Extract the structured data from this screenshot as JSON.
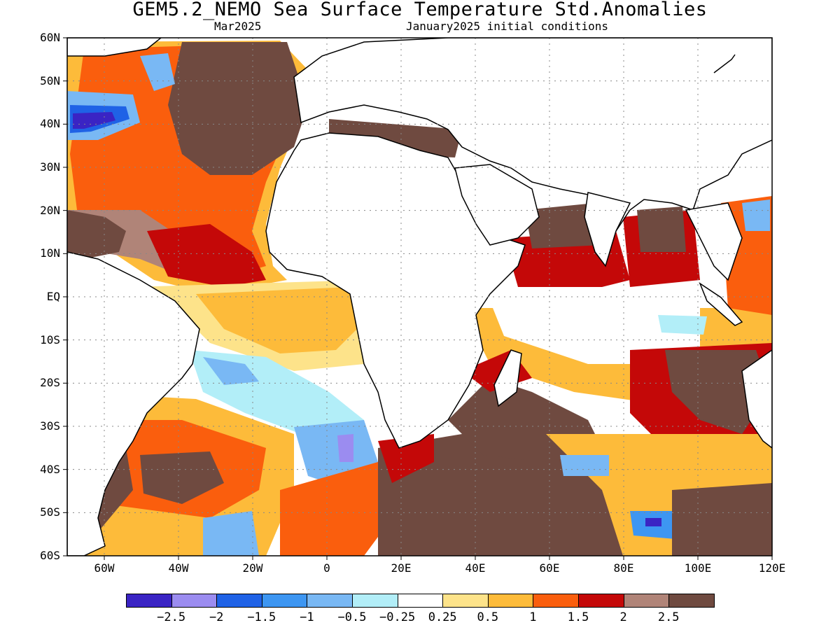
{
  "header": {
    "title": "GEM5.2_NEMO Sea Surface Temperature Std.Anomalies",
    "valid_month": "Mar2025",
    "init": "January2025 initial conditions"
  },
  "axes": {
    "lat_labels": [
      "60N",
      "50N",
      "40N",
      "30N",
      "20N",
      "10N",
      "EQ",
      "10S",
      "20S",
      "30S",
      "40S",
      "50S",
      "60S"
    ],
    "lon_labels": [
      "60W",
      "40W",
      "20W",
      "0",
      "20E",
      "40E",
      "60E",
      "80E",
      "100E",
      "120E"
    ],
    "lat_range": [
      -60,
      60
    ],
    "lon_range": [
      -70,
      120
    ],
    "grid": true
  },
  "colorbar": {
    "colors": [
      "#3a24c4",
      "#9b8cf0",
      "#1f62e6",
      "#3d96f2",
      "#79b8f4",
      "#b2eef8",
      "#ffffff",
      "#fde38a",
      "#fdbb3a",
      "#fa5e0d",
      "#c40808",
      "#b08478",
      "#6f4a40"
    ],
    "labels": [
      "−2.5",
      "−2",
      "−1.5",
      "−1",
      "−0.5",
      "−0.25",
      "0.25",
      "0.5",
      "1",
      "1.5",
      "2",
      "2.5"
    ]
  }
}
